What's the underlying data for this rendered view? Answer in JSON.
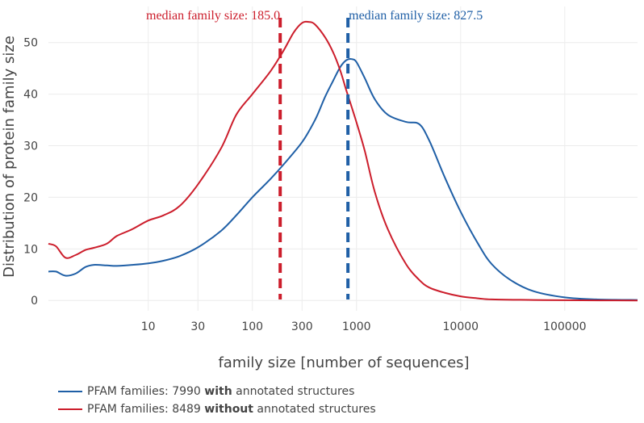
{
  "chart_data": {
    "type": "line",
    "xscale": "log",
    "xlabel": "family size [number of sequences]",
    "ylabel": "Distribution of protein family size",
    "xlim": [
      1.1,
      500000
    ],
    "ylim": [
      -2,
      57
    ],
    "xticks": [
      10,
      30,
      100,
      300,
      1000,
      10000,
      100000
    ],
    "xtick_labels": [
      "10",
      "30",
      "100",
      "300",
      "1000",
      "10000",
      "100000"
    ],
    "yticks": [
      0,
      10,
      20,
      30,
      40,
      50
    ],
    "ytick_labels": [
      "0",
      "10",
      "20",
      "30",
      "40",
      "50"
    ],
    "grid": true,
    "legend_position": "bottom-left",
    "series": [
      {
        "name": "PFAM families: 7990 with annotated structures",
        "legend": {
          "pre": "PFAM families: 7990 ",
          "bold": "with",
          "post": " annotated structures"
        },
        "color": "#1f5fa6",
        "x": [
          1.1,
          1.3,
          1.6,
          2,
          2.5,
          3,
          4,
          5,
          7,
          10,
          14,
          20,
          30,
          50,
          70,
          100,
          150,
          200,
          300,
          400,
          500,
          600,
          700,
          800,
          900,
          1000,
          1200,
          1500,
          2000,
          3000,
          4000,
          5000,
          7000,
          10000,
          15000,
          20000,
          30000,
          50000,
          100000,
          200000,
          500000
        ],
        "y": [
          5.6,
          5.6,
          4.8,
          5.2,
          6.5,
          6.9,
          6.8,
          6.7,
          6.9,
          7.2,
          7.7,
          8.6,
          10.3,
          13.5,
          16.5,
          20.0,
          23.6,
          26.4,
          30.7,
          35.0,
          39.5,
          42.7,
          45.3,
          46.6,
          46.8,
          46.2,
          43.1,
          39.0,
          36.0,
          34.6,
          34.2,
          31.0,
          24.0,
          17.2,
          10.7,
          7.0,
          4.0,
          1.8,
          0.6,
          0.2,
          0.1
        ]
      },
      {
        "name": "PFAM families: 8489 without annotated structures",
        "legend": {
          "pre": "PFAM families: 8489 ",
          "bold": "without",
          "post": " annotated structures"
        },
        "color": "#cc1d2b",
        "x": [
          1.1,
          1.3,
          1.6,
          2,
          2.5,
          3,
          4,
          5,
          7,
          10,
          14,
          20,
          30,
          50,
          70,
          100,
          150,
          200,
          250,
          300,
          350,
          400,
          500,
          600,
          700,
          800,
          1000,
          1200,
          1500,
          2000,
          3000,
          4000,
          5000,
          7000,
          10000,
          15000,
          20000,
          50000,
          100000,
          500000
        ],
        "y": [
          11.0,
          10.5,
          8.3,
          8.8,
          9.8,
          10.2,
          11.0,
          12.5,
          13.8,
          15.5,
          16.5,
          18.3,
          22.5,
          29.5,
          36.0,
          40.0,
          44.5,
          48.5,
          52.0,
          53.8,
          54.0,
          53.5,
          51.0,
          48.0,
          44.5,
          40.7,
          34.5,
          29.0,
          21.0,
          13.8,
          7.0,
          4.0,
          2.5,
          1.5,
          0.8,
          0.4,
          0.2,
          0.1,
          0.05,
          0.0
        ]
      }
    ],
    "annotations": [
      {
        "text": "median family size: 185.0",
        "x": 185.0,
        "color": "#cc1d2b"
      },
      {
        "text": "median family size: 827.5",
        "x": 827.5,
        "color": "#1f5fa6"
      }
    ]
  }
}
